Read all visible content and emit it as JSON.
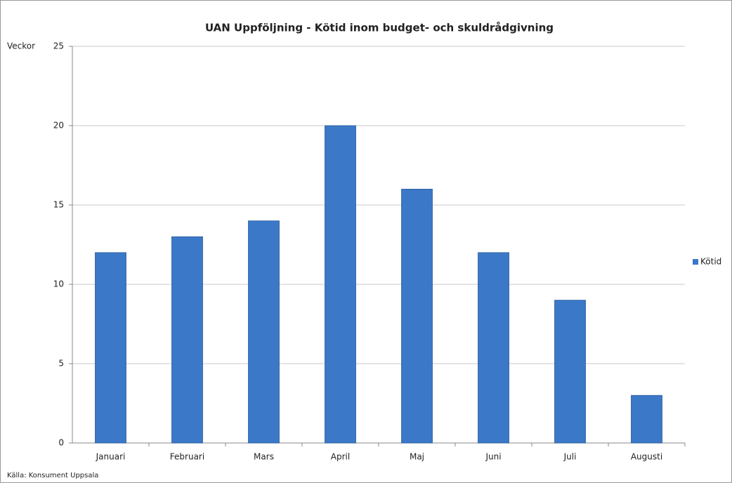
{
  "chart_data": {
    "type": "bar",
    "title": "UAN Uppföljning - Kötid inom budget- och skuldrådgivning",
    "y_label": "Veckor",
    "source": "Källa: Konsument Uppsala",
    "categories": [
      "Januari",
      "Februari",
      "Mars",
      "April",
      "Maj",
      "Juni",
      "Juli",
      "Augusti"
    ],
    "series": [
      {
        "name": "Kötid",
        "color": "#3b78c8",
        "values": [
          12,
          13,
          14,
          20,
          16,
          12,
          9,
          3
        ]
      }
    ],
    "ylim": [
      0,
      25
    ],
    "yticks": [
      0,
      5,
      10,
      15,
      20,
      25
    ],
    "grid": true,
    "legend": "right"
  }
}
